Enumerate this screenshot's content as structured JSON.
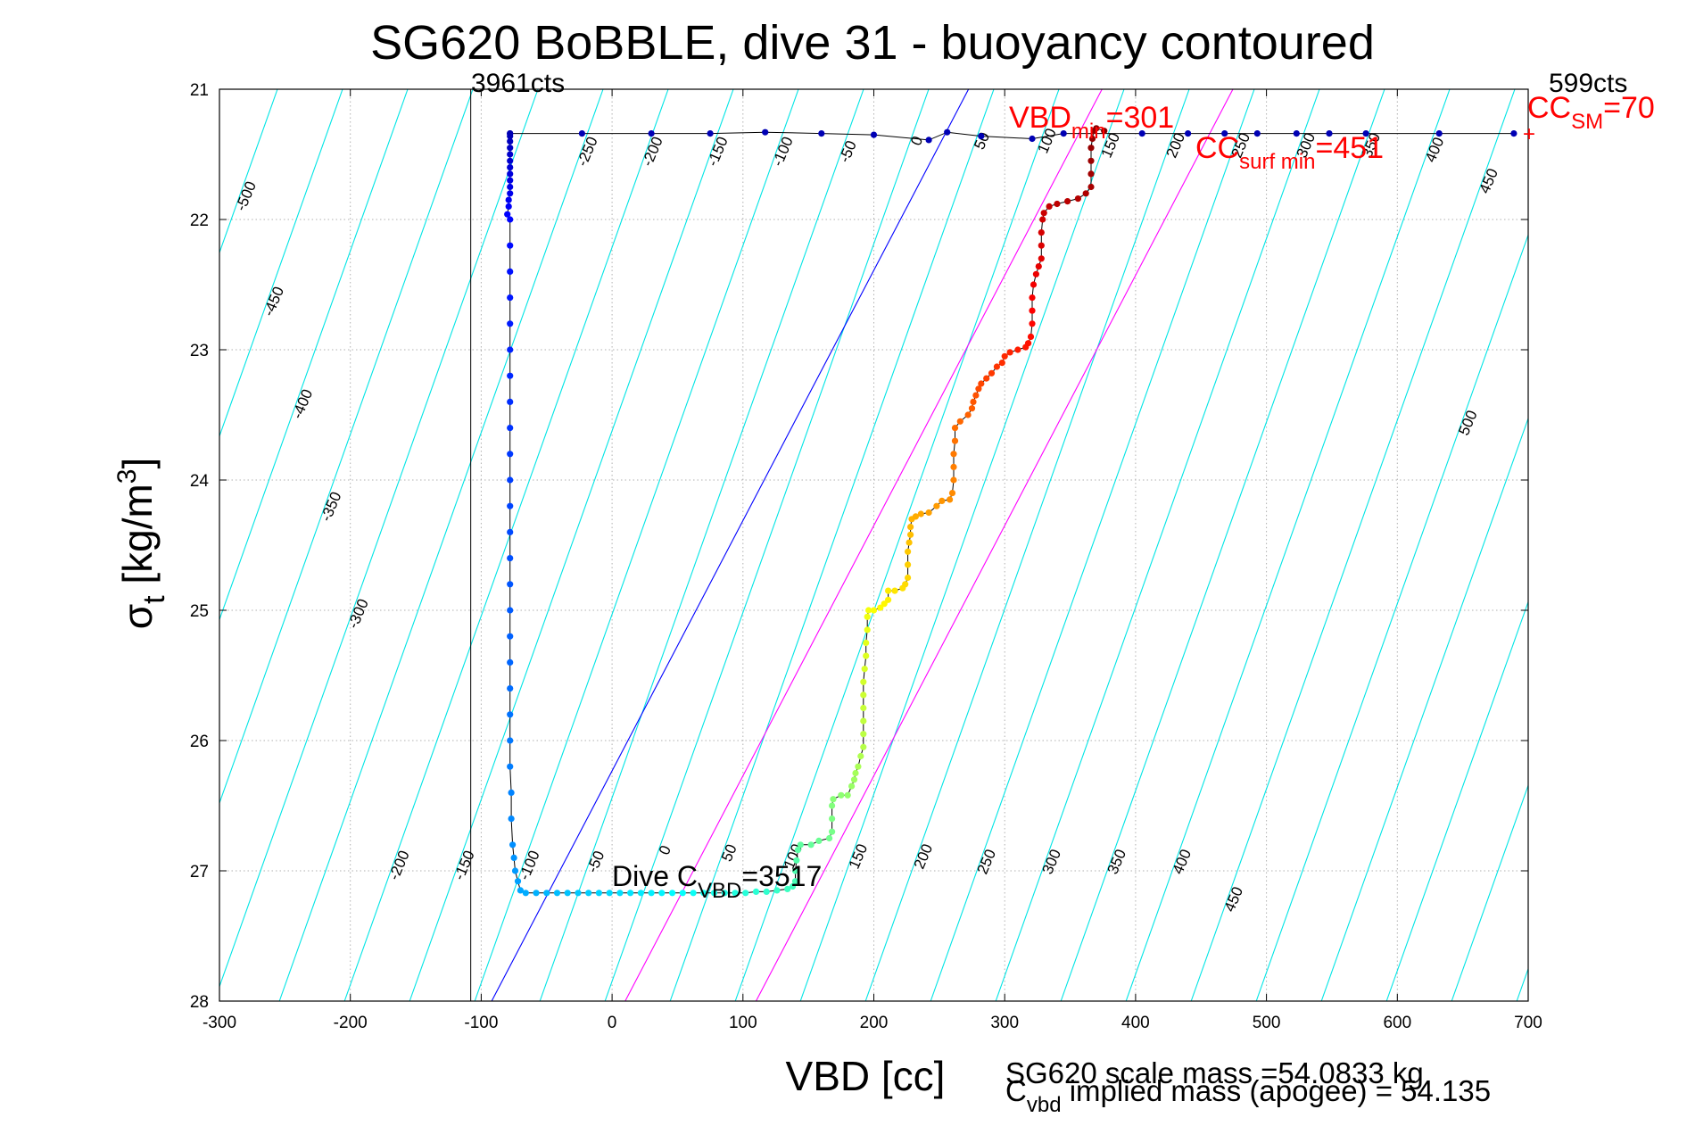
{
  "chart_data": {
    "type": "scatter",
    "title": "SG620 BoBBLE, dive 31 - buoyancy contoured",
    "xlabel": "VBD [cc]",
    "ylabel": {
      "main": "σ",
      "sub": "t",
      "rest": " [kg/m",
      "sup": "3",
      "end": "]"
    },
    "xlim": [
      -300,
      700
    ],
    "ylim": [
      21,
      28
    ],
    "y_reversed": true,
    "grid": true,
    "x_ticks": [
      -300,
      -200,
      -100,
      0,
      100,
      200,
      300,
      400,
      500,
      600,
      700
    ],
    "y_ticks": [
      21,
      22,
      23,
      24,
      25,
      26,
      27,
      28
    ],
    "x_tick_labels": [
      "-300",
      "-200",
      "-100",
      "0",
      "100",
      "200",
      "300",
      "400",
      "500",
      "600",
      "700"
    ],
    "y_tick_labels": [
      "21",
      "22",
      "23",
      "24",
      "25",
      "26",
      "27",
      "28"
    ],
    "colors": {
      "contour": "#00e5e5",
      "blue_line": "#0000ff",
      "magenta_line": "#ff00ff",
      "annotation_red": "#ff0000",
      "grid": "#b0b0b0"
    },
    "buoyancy_contour_labels_top": [
      "-500",
      "-450",
      "-400",
      "-350",
      "-300",
      "-250",
      "-200",
      "-150",
      "-100",
      "-50",
      "0",
      "50",
      "100",
      "150",
      "200",
      "250",
      "300",
      "350",
      "400",
      "450",
      "500"
    ],
    "buoyancy_contour_labels_bottom": [
      "-200",
      "-150",
      "-100",
      "-50",
      "0",
      "50",
      "100",
      "150",
      "200",
      "250",
      "300",
      "350",
      "400",
      "450"
    ],
    "vertical_line_label": "3961cts",
    "top_right_label": "599cts",
    "annotations": {
      "vbd_min": {
        "main": "VBD",
        "sub": "min",
        "rest": "=301"
      },
      "cc_surf_min": {
        "main": "CC",
        "sub": "surf min",
        "rest": "=451"
      },
      "cc_sm": {
        "main": "CC",
        "sub": "SM",
        "rest": "=70"
      },
      "dive_cvbd": {
        "main": "Dive C",
        "sub": "VBD",
        "rest": "=3517"
      }
    },
    "footer": {
      "scale_mass": "SG620 scale mass =54.0833 kg",
      "implied_mass": {
        "main": "C",
        "sub": "vbd",
        "rest": " implied mass (apogee) = 54.135"
      }
    },
    "series": [
      {
        "name": "",
        "points": [
          [
            -78,
            21.34
          ],
          [
            -78,
            21.36
          ],
          [
            -78,
            21.4
          ],
          [
            -78,
            21.45
          ],
          [
            -78,
            21.5
          ],
          [
            -78,
            21.55
          ],
          [
            -78,
            21.6
          ],
          [
            -78,
            21.65
          ],
          [
            -78,
            21.7
          ],
          [
            -78,
            21.75
          ],
          [
            -78,
            21.8
          ],
          [
            -79,
            21.85
          ],
          [
            -79,
            21.9
          ],
          [
            -80,
            21.96
          ],
          [
            -78,
            22.0
          ],
          [
            -78,
            22.2
          ],
          [
            -78,
            22.4
          ],
          [
            -78,
            22.6
          ],
          [
            -78,
            22.8
          ],
          [
            -78,
            23.0
          ],
          [
            -78,
            23.2
          ],
          [
            -78,
            23.4
          ],
          [
            -78,
            23.6
          ],
          [
            -78,
            23.8
          ],
          [
            -78,
            24.0
          ],
          [
            -78,
            24.2
          ],
          [
            -78,
            24.4
          ],
          [
            -78,
            24.6
          ],
          [
            -78,
            24.8
          ],
          [
            -78,
            25.0
          ],
          [
            -78,
            25.2
          ],
          [
            -78,
            25.4
          ],
          [
            -78,
            25.6
          ],
          [
            -78,
            25.8
          ],
          [
            -78,
            26.0
          ],
          [
            -78,
            26.2
          ],
          [
            -77,
            26.4
          ],
          [
            -77,
            26.6
          ],
          [
            -76,
            26.8
          ],
          [
            -75,
            26.9
          ],
          [
            -74,
            27.0
          ],
          [
            -72,
            27.08
          ],
          [
            -70,
            27.15
          ],
          [
            -66,
            27.17
          ],
          [
            -58,
            27.17
          ],
          [
            -50,
            27.17
          ],
          [
            -42,
            27.17
          ],
          [
            -34,
            27.17
          ],
          [
            -26,
            27.17
          ],
          [
            -18,
            27.17
          ],
          [
            -10,
            27.17
          ],
          [
            -2,
            27.17
          ],
          [
            6,
            27.17
          ],
          [
            14,
            27.17
          ],
          [
            22,
            27.17
          ],
          [
            30,
            27.17
          ],
          [
            38,
            27.17
          ],
          [
            46,
            27.17
          ],
          [
            54,
            27.17
          ],
          [
            62,
            27.17
          ],
          [
            70,
            27.17
          ],
          [
            78,
            27.17
          ],
          [
            86,
            27.17
          ],
          [
            94,
            27.17
          ],
          [
            102,
            27.17
          ],
          [
            110,
            27.16
          ],
          [
            118,
            27.16
          ],
          [
            126,
            27.15
          ],
          [
            134,
            27.14
          ],
          [
            138,
            27.12
          ],
          [
            140,
            27.08
          ],
          [
            140,
            27.0
          ],
          [
            141,
            26.92
          ],
          [
            142,
            26.84
          ],
          [
            144,
            26.8
          ],
          [
            152,
            26.8
          ],
          [
            158,
            26.77
          ],
          [
            166,
            26.75
          ],
          [
            168,
            26.7
          ],
          [
            168,
            26.6
          ],
          [
            168,
            26.5
          ],
          [
            169,
            26.45
          ],
          [
            175,
            26.42
          ],
          [
            180,
            26.42
          ],
          [
            183,
            26.35
          ],
          [
            185,
            26.3
          ],
          [
            186,
            26.25
          ],
          [
            188,
            26.2
          ],
          [
            190,
            26.12
          ],
          [
            192,
            26.05
          ],
          [
            192,
            25.95
          ],
          [
            192,
            25.85
          ],
          [
            192,
            25.75
          ],
          [
            192,
            25.65
          ],
          [
            192,
            25.55
          ],
          [
            193,
            25.45
          ],
          [
            194,
            25.35
          ],
          [
            194,
            25.25
          ],
          [
            195,
            25.15
          ],
          [
            195,
            25.05
          ],
          [
            196,
            25.0
          ],
          [
            200,
            25.0
          ],
          [
            205,
            24.98
          ],
          [
            208,
            24.95
          ],
          [
            211,
            24.92
          ],
          [
            211,
            24.85
          ],
          [
            216,
            24.85
          ],
          [
            222,
            24.83
          ],
          [
            224,
            24.8
          ],
          [
            226,
            24.75
          ],
          [
            226,
            24.65
          ],
          [
            226,
            24.55
          ],
          [
            227,
            24.48
          ],
          [
            228,
            24.42
          ],
          [
            228,
            24.36
          ],
          [
            229,
            24.3
          ],
          [
            232,
            24.28
          ],
          [
            236,
            24.26
          ],
          [
            242,
            24.25
          ],
          [
            248,
            24.2
          ],
          [
            252,
            24.16
          ],
          [
            258,
            24.15
          ],
          [
            260,
            24.1
          ],
          [
            261,
            24.0
          ],
          [
            261,
            23.9
          ],
          [
            261,
            23.8
          ],
          [
            262,
            23.7
          ],
          [
            262,
            23.6
          ],
          [
            266,
            23.55
          ],
          [
            272,
            23.5
          ],
          [
            275,
            23.45
          ],
          [
            276,
            23.4
          ],
          [
            278,
            23.35
          ],
          [
            280,
            23.3
          ],
          [
            282,
            23.26
          ],
          [
            286,
            23.22
          ],
          [
            290,
            23.18
          ],
          [
            294,
            23.13
          ],
          [
            298,
            23.1
          ],
          [
            300,
            23.05
          ],
          [
            304,
            23.02
          ],
          [
            310,
            23.0
          ],
          [
            316,
            22.98
          ],
          [
            318,
            22.95
          ],
          [
            320,
            22.9
          ],
          [
            321,
            22.8
          ],
          [
            321,
            22.7
          ],
          [
            321,
            22.6
          ],
          [
            322,
            22.5
          ],
          [
            324,
            22.42
          ],
          [
            326,
            22.36
          ],
          [
            328,
            22.3
          ],
          [
            328,
            22.2
          ],
          [
            328,
            22.1
          ],
          [
            329,
            22.0
          ],
          [
            330,
            21.95
          ],
          [
            334,
            21.9
          ],
          [
            340,
            21.88
          ],
          [
            348,
            21.86
          ],
          [
            356,
            21.84
          ],
          [
            362,
            21.8
          ],
          [
            366,
            21.75
          ],
          [
            366,
            21.65
          ],
          [
            366,
            21.55
          ],
          [
            366,
            21.45
          ],
          [
            367,
            21.38
          ],
          [
            368,
            21.32
          ],
          [
            370,
            21.3
          ],
          [
            376,
            21.32
          ]
        ]
      },
      {
        "name": "",
        "points": [
          [
            -78,
            21.34
          ],
          [
            -23,
            21.34
          ],
          [
            30,
            21.34
          ],
          [
            75,
            21.34
          ],
          [
            117,
            21.33
          ],
          [
            160,
            21.34
          ],
          [
            200,
            21.35
          ],
          [
            242,
            21.39
          ],
          [
            256,
            21.33
          ],
          [
            282,
            21.36
          ],
          [
            321,
            21.38
          ],
          [
            345,
            21.34
          ],
          [
            405,
            21.34
          ],
          [
            440,
            21.34
          ],
          [
            468,
            21.34
          ],
          [
            493,
            21.34
          ],
          [
            523,
            21.34
          ],
          [
            548,
            21.34
          ],
          [
            576,
            21.34
          ],
          [
            632,
            21.34
          ],
          [
            689,
            21.34
          ]
        ]
      }
    ]
  }
}
